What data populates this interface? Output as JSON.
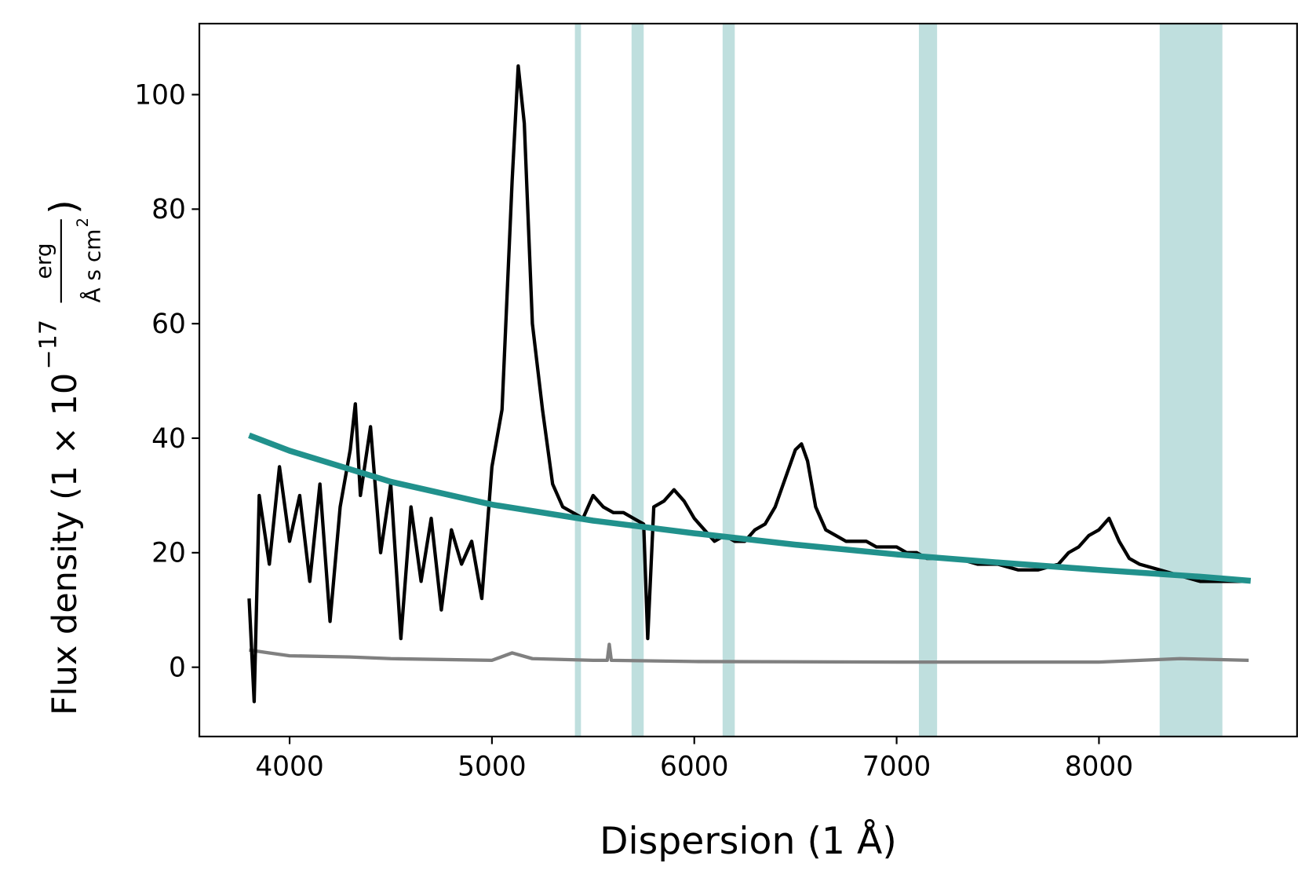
{
  "chart_data": {
    "type": "line",
    "xlabel": "Dispersion (1 Å)",
    "ylabel_parts": [
      "Flux density (1 × 10",
      "−17",
      "erg",
      "Å s cm",
      "2",
      ")"
    ],
    "xlim": [
      3554,
      8979
    ],
    "ylim": [
      -12.1,
      112.4
    ],
    "xticks": [
      4000,
      5000,
      6000,
      7000,
      8000
    ],
    "yticks": [
      0,
      20,
      40,
      60,
      80,
      100
    ],
    "grid": false,
    "span_color": "#bfdfde",
    "spans": [
      [
        5410,
        5440
      ],
      [
        5690,
        5750
      ],
      [
        6140,
        6200
      ],
      [
        7110,
        7200
      ],
      [
        8300,
        8610
      ]
    ],
    "series": [
      {
        "color": "#808080",
        "width": 4,
        "x": [
          3800,
          3900,
          4000,
          4300,
          4500,
          5000,
          5100,
          5200,
          5500,
          5570,
          5580,
          5590,
          6000,
          7000,
          8000,
          8400,
          8740
        ],
        "values": [
          3,
          2.5,
          2,
          1.8,
          1.5,
          1.2,
          2.5,
          1.5,
          1.2,
          1.2,
          4,
          1.2,
          1,
          0.9,
          0.9,
          1.5,
          1.2
        ]
      },
      {
        "color": "#000000",
        "width": 4,
        "x": [
          3800,
          3825,
          3850,
          3900,
          3950,
          4000,
          4050,
          4100,
          4150,
          4200,
          4250,
          4300,
          4325,
          4350,
          4400,
          4450,
          4500,
          4550,
          4600,
          4650,
          4700,
          4750,
          4800,
          4850,
          4900,
          4950,
          5000,
          5050,
          5100,
          5130,
          5160,
          5200,
          5250,
          5300,
          5350,
          5400,
          5450,
          5500,
          5550,
          5600,
          5650,
          5700,
          5750,
          5770,
          5800,
          5850,
          5900,
          5950,
          6000,
          6050,
          6100,
          6150,
          6200,
          6250,
          6300,
          6350,
          6400,
          6450,
          6500,
          6530,
          6560,
          6600,
          6650,
          6700,
          6750,
          6800,
          6850,
          6900,
          6950,
          7000,
          7050,
          7100,
          7150,
          7200,
          7300,
          7400,
          7500,
          7600,
          7700,
          7800,
          7850,
          7900,
          7950,
          8000,
          8050,
          8100,
          8150,
          8200,
          8300,
          8400,
          8500,
          8600,
          8700,
          8740
        ],
        "values": [
          12,
          -6,
          30,
          18,
          35,
          22,
          30,
          15,
          32,
          8,
          28,
          38,
          46,
          30,
          42,
          20,
          32,
          5,
          28,
          15,
          26,
          10,
          24,
          18,
          22,
          12,
          35,
          45,
          85,
          105,
          95,
          60,
          45,
          32,
          28,
          27,
          26,
          30,
          28,
          27,
          27,
          26,
          25,
          5,
          28,
          29,
          31,
          29,
          26,
          24,
          22,
          23,
          22,
          22,
          24,
          25,
          28,
          33,
          38,
          39,
          36,
          28,
          24,
          23,
          22,
          22,
          22,
          21,
          21,
          21,
          20,
          20,
          19,
          19,
          19,
          18,
          18,
          17,
          17,
          18,
          20,
          21,
          23,
          24,
          26,
          22,
          19,
          18,
          17,
          16,
          15,
          15,
          15,
          15
        ]
      },
      {
        "color": "#21918c",
        "width": 7,
        "x": [
          3800,
          4000,
          4500,
          5000,
          5500,
          6000,
          6500,
          7000,
          7500,
          8000,
          8500,
          8750
        ],
        "values": [
          40.5,
          37.8,
          32.4,
          28.4,
          25.6,
          23.4,
          21.4,
          19.7,
          18.3,
          17.0,
          15.8,
          15.1
        ]
      }
    ]
  }
}
